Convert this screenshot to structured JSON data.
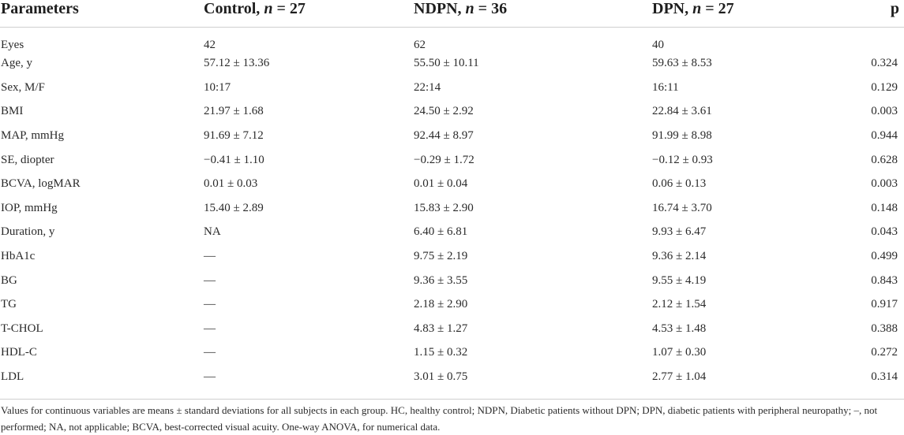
{
  "table": {
    "headers": {
      "parameters": "Parameters",
      "control_prefix": "Control, ",
      "control_n": "n",
      "control_suffix": " = 27",
      "ndpn_prefix": "NDPN, ",
      "ndpn_n": "n",
      "ndpn_suffix": " = 36",
      "dpn_prefix": "DPN, ",
      "dpn_n": "n",
      "dpn_suffix": " = 27",
      "p": "p"
    },
    "rows": [
      {
        "param": "Eyes",
        "control": "42",
        "ndpn": "62",
        "dpn": "40",
        "p": ""
      },
      {
        "param": "Age, y",
        "control": "57.12 ± 13.36",
        "ndpn": "55.50 ± 10.11",
        "dpn": "59.63 ± 8.53",
        "p": "0.324"
      },
      {
        "param": "Sex, M/F",
        "control": "10:17",
        "ndpn": "22:14",
        "dpn": "16:11",
        "p": "0.129"
      },
      {
        "param": "BMI",
        "control": "21.97 ± 1.68",
        "ndpn": "24.50 ± 2.92",
        "dpn": "22.84 ± 3.61",
        "p": "0.003"
      },
      {
        "param": "MAP, mmHg",
        "control": "91.69 ± 7.12",
        "ndpn": "92.44 ± 8.97",
        "dpn": "91.99 ± 8.98",
        "p": "0.944"
      },
      {
        "param": "SE, diopter",
        "control": "−0.41 ± 1.10",
        "ndpn": "−0.29 ± 1.72",
        "dpn": "−0.12 ± 0.93",
        "p": "0.628"
      },
      {
        "param": "BCVA, logMAR",
        "control": "0.01 ± 0.03",
        "ndpn": "0.01 ± 0.04",
        "dpn": "0.06 ± 0.13",
        "p": "0.003"
      },
      {
        "param": "IOP, mmHg",
        "control": "15.40 ± 2.89",
        "ndpn": "15.83 ± 2.90",
        "dpn": "16.74 ± 3.70",
        "p": "0.148"
      },
      {
        "param": "Duration, y",
        "control": "NA",
        "ndpn": "6.40 ± 6.81",
        "dpn": "9.93 ± 6.47",
        "p": "0.043"
      },
      {
        "param": "HbA1c",
        "control": "—",
        "ndpn": "9.75 ± 2.19",
        "dpn": "9.36 ± 2.14",
        "p": "0.499"
      },
      {
        "param": "BG",
        "control": "—",
        "ndpn": "9.36 ± 3.55",
        "dpn": "9.55 ± 4.19",
        "p": "0.843"
      },
      {
        "param": "TG",
        "control": "—",
        "ndpn": "2.18 ± 2.90",
        "dpn": "2.12 ± 1.54",
        "p": "0.917"
      },
      {
        "param": "T-CHOL",
        "control": "—",
        "ndpn": "4.83 ± 1.27",
        "dpn": "4.53 ± 1.48",
        "p": "0.388"
      },
      {
        "param": "HDL-C",
        "control": "—",
        "ndpn": "1.15 ± 0.32",
        "dpn": "1.07 ± 0.30",
        "p": "0.272"
      },
      {
        "param": "LDL",
        "control": "—",
        "ndpn": "3.01 ± 0.75",
        "dpn": "2.77 ± 1.04",
        "p": "0.314"
      }
    ]
  },
  "footnote": "Values for continuous variables are means ± standard deviations for all subjects in each group. HC, healthy control; NDPN, Diabetic patients without DPN; DPN, diabetic patients with peripheral neuropathy; –, not performed; NA, not applicable; BCVA, best-corrected visual acuity. One-way ANOVA, for numerical data."
}
